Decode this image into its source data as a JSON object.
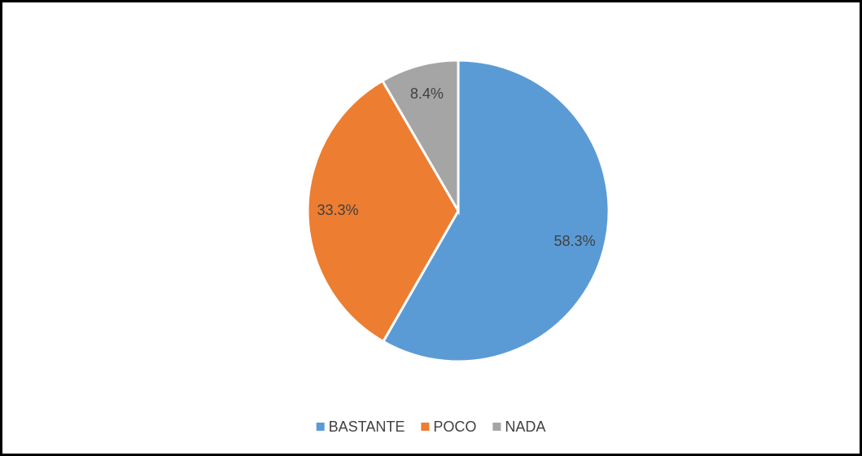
{
  "chart_data": {
    "type": "pie",
    "categories": [
      "BASTANTE",
      "POCO",
      "NADA"
    ],
    "values": [
      58.3,
      33.3,
      8.4
    ],
    "value_labels": [
      "58.3%",
      "33.3%",
      "8.4%"
    ],
    "colors": [
      "#5b9bd5",
      "#ed7d31",
      "#a5a5a5"
    ],
    "legend": "bottom"
  }
}
